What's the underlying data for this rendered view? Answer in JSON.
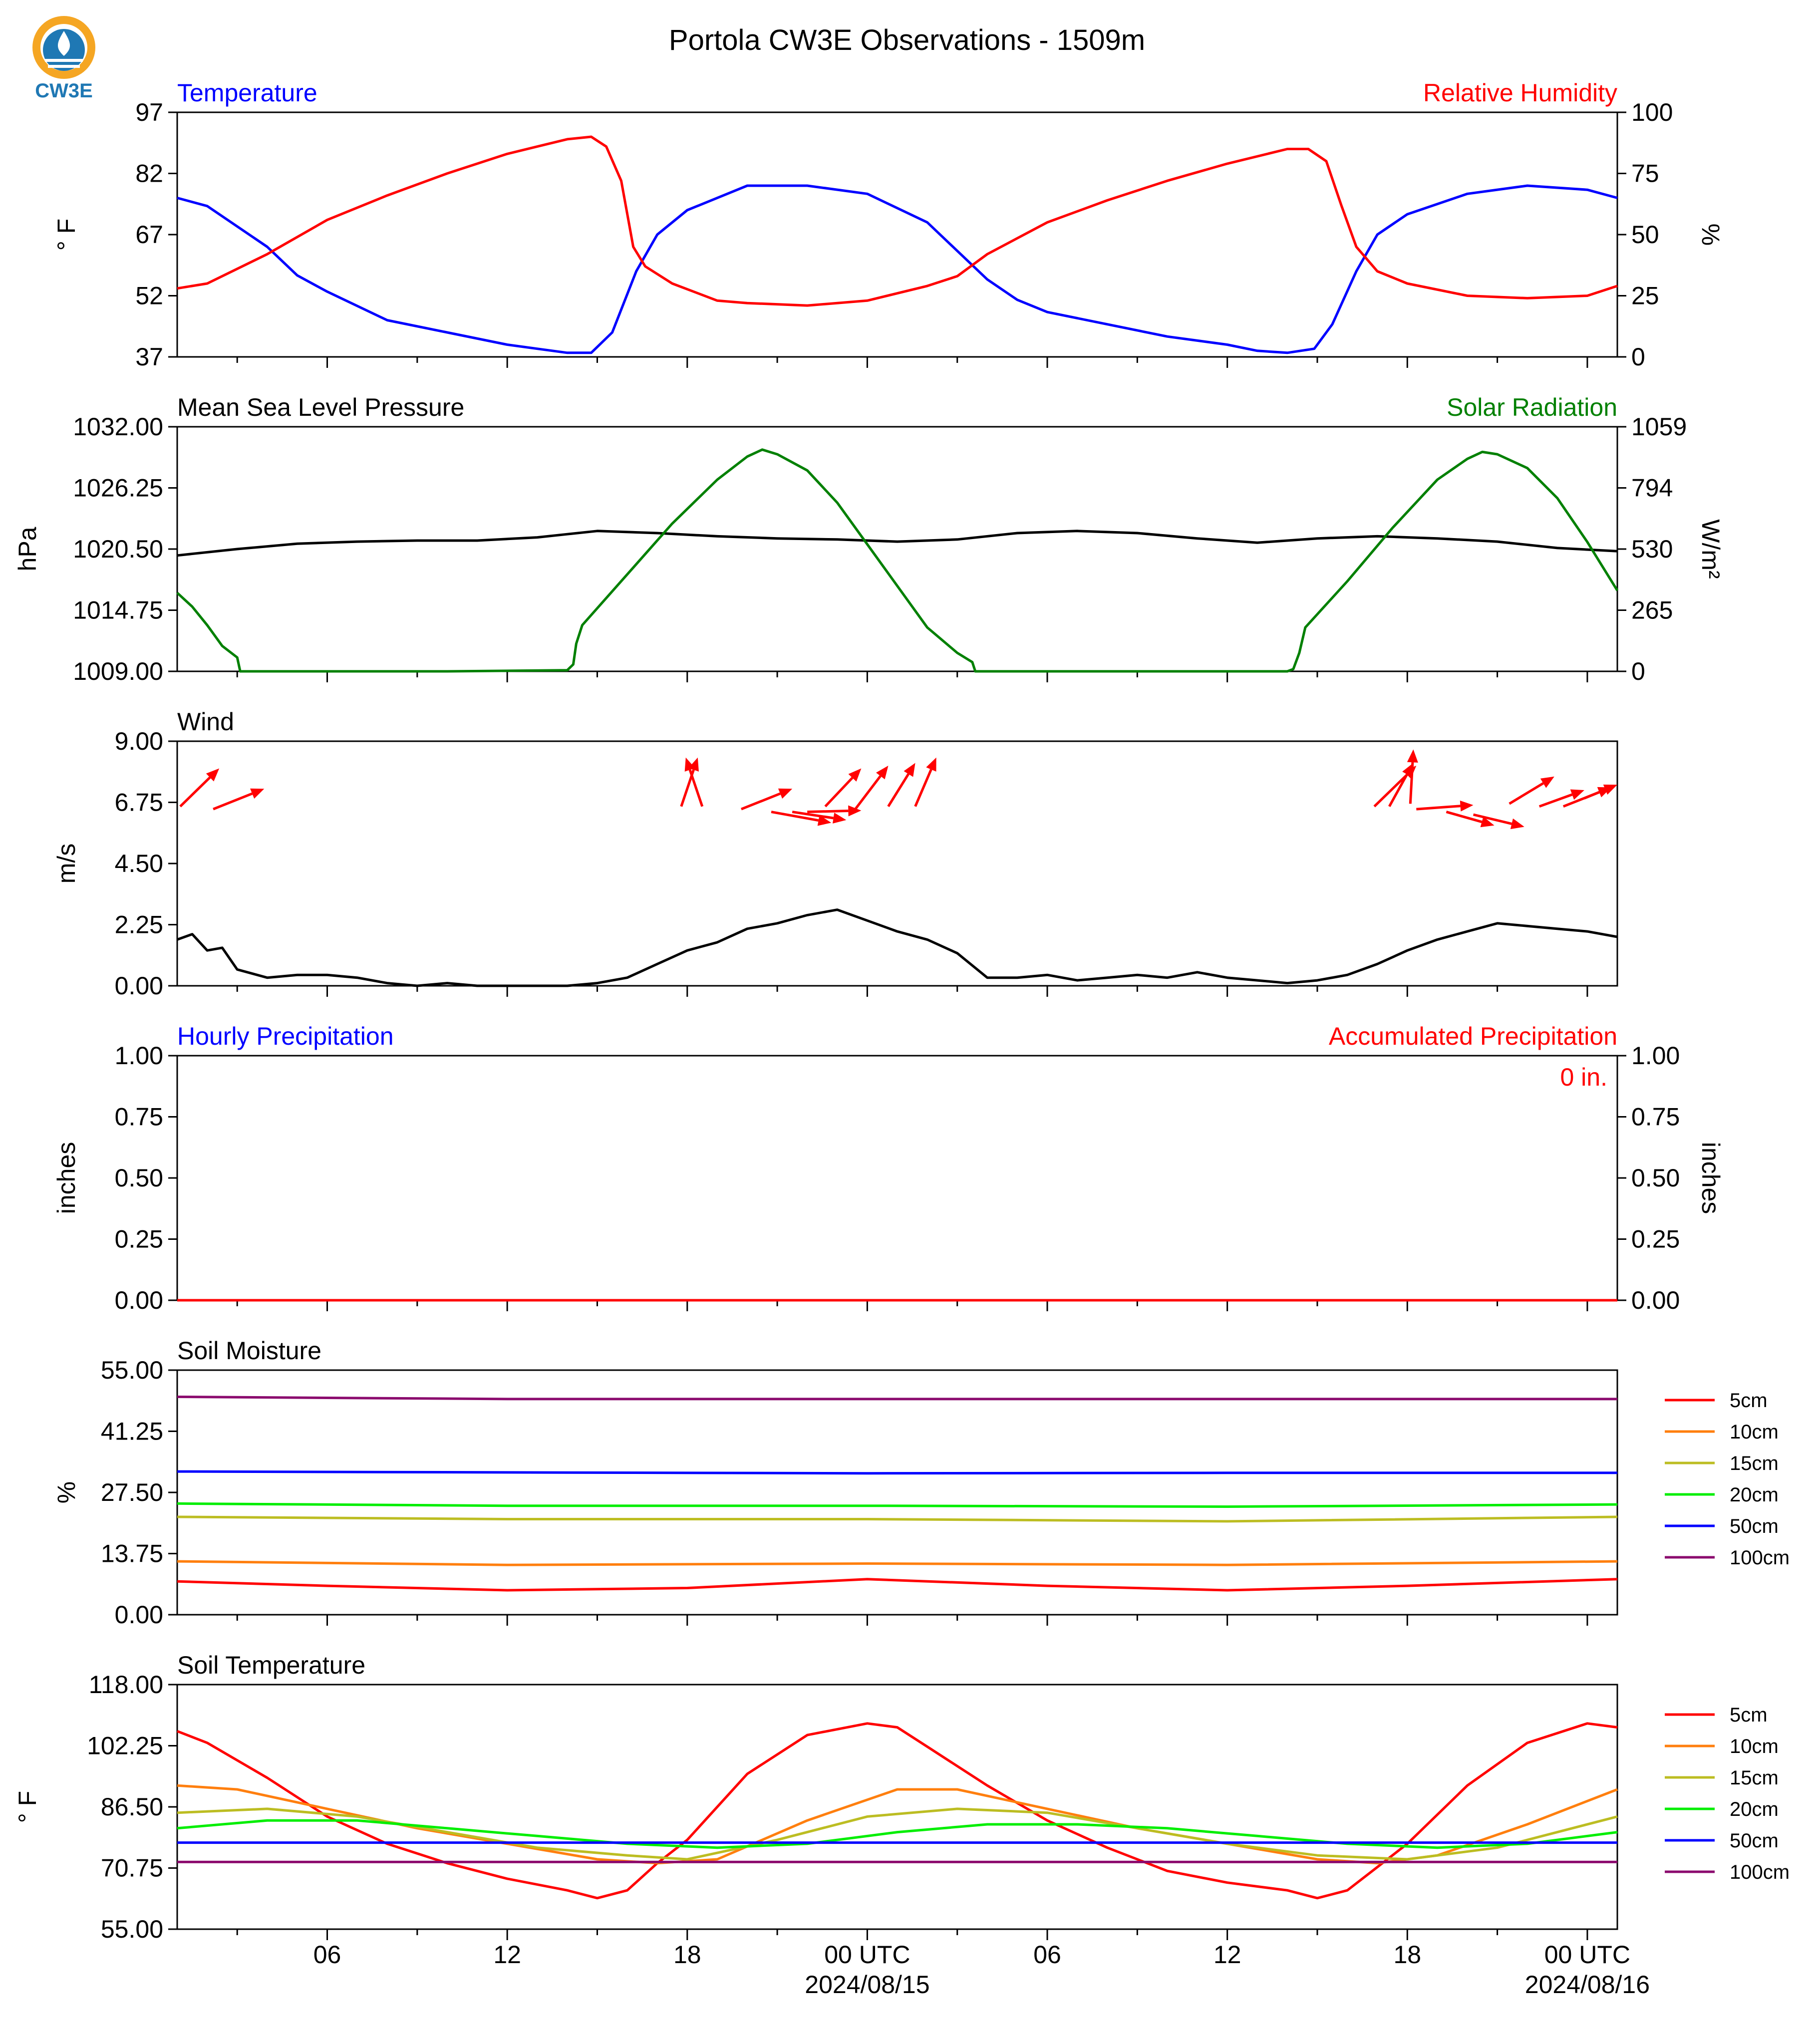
{
  "figure": {
    "title": "Portola CW3E Observations - 1509m",
    "logo_text": "CW3E",
    "colors": {
      "blue": "#0000ff",
      "red": "#ff0000",
      "green": "#008000",
      "black": "#000000",
      "logo": "#1f78b4",
      "logo_orange": "#f5a623"
    },
    "x_axis": {
      "tick_hours": [
        6,
        12,
        18,
        24,
        30,
        36,
        42,
        48
      ],
      "tick_labels": [
        "06",
        "12",
        "18",
        "00 UTC",
        "06",
        "12",
        "18",
        "00 UTC"
      ],
      "date_labels": [
        {
          "hour": 24,
          "text": "2024/08/15"
        },
        {
          "hour": 48,
          "text": "2024/08/16"
        }
      ],
      "xlim_hours": [
        1,
        49
      ]
    }
  },
  "chart_data": [
    {
      "id": "temperature_rh",
      "type": "line",
      "left_title": "Temperature",
      "right_title": "Relative Humidity",
      "ylabel_left": "° F",
      "ylabel_right": "%",
      "ylim_left": [
        37,
        97
      ],
      "ylim_right": [
        0,
        100
      ],
      "yticks_left": [
        "97",
        "82",
        "67",
        "52",
        "37"
      ],
      "yticks_right": [
        "100",
        "75",
        "50",
        "25",
        "0"
      ],
      "series": [
        {
          "name": "Temperature",
          "color": "#0000ff",
          "axis": "left",
          "x": [
            1,
            2,
            4,
            5,
            6,
            8,
            10,
            12,
            13,
            14,
            14.8,
            15.5,
            16.3,
            17,
            18,
            20,
            22,
            24,
            26,
            28,
            29,
            30,
            32,
            34,
            36,
            37,
            38,
            38.9,
            39.5,
            40.3,
            41,
            42,
            44,
            46,
            48,
            49
          ],
          "y": [
            76,
            74,
            64,
            57,
            53,
            46,
            43,
            40,
            39,
            38,
            38,
            43,
            58,
            67,
            73,
            79,
            79,
            77,
            70,
            56,
            51,
            48,
            45,
            42,
            40,
            38.5,
            38,
            39,
            45,
            58,
            67,
            72,
            77,
            79,
            78,
            76
          ]
        },
        {
          "name": "Relative Humidity",
          "color": "#ff0000",
          "axis": "right",
          "x": [
            1,
            2,
            4,
            6,
            8,
            10,
            12,
            13,
            14,
            14.8,
            15.3,
            15.8,
            16.2,
            16.6,
            17.5,
            19,
            20,
            22,
            24,
            26,
            27,
            28,
            30,
            32,
            34,
            36,
            38,
            38.7,
            39.3,
            39.8,
            40.3,
            41,
            42,
            44,
            46,
            48,
            49
          ],
          "y": [
            28,
            30,
            42,
            56,
            66,
            75,
            83,
            86,
            89,
            90,
            86,
            72,
            45,
            37,
            30,
            23,
            22,
            21,
            23,
            29,
            33,
            42,
            55,
            64,
            72,
            79,
            85,
            85,
            80,
            62,
            45,
            35,
            30,
            25,
            24,
            25,
            29
          ]
        }
      ]
    },
    {
      "id": "pressure_solar",
      "type": "line",
      "left_title": "Mean Sea Level Pressure",
      "right_title": "Solar Radiation",
      "ylabel_left": "hPa",
      "ylabel_right": "W/m²",
      "ylim_left": [
        1009,
        1032
      ],
      "ylim_right": [
        0,
        1059
      ],
      "yticks_left": [
        "1032.00",
        "1026.25",
        "1020.50",
        "1014.75",
        "1009.00"
      ],
      "yticks_right": [
        "1059",
        "794",
        "530",
        "265",
        "0"
      ],
      "series": [
        {
          "name": "Mean Sea Level Pressure",
          "color": "#000000",
          "axis": "left",
          "x": [
            1,
            3,
            5,
            7,
            9,
            11,
            13,
            14,
            15,
            17,
            19,
            21,
            23,
            25,
            27,
            29,
            31,
            33,
            35,
            37,
            39,
            41,
            43,
            45,
            47,
            49
          ],
          "y": [
            1019.9,
            1020.5,
            1021.0,
            1021.2,
            1021.3,
            1021.3,
            1021.6,
            1021.9,
            1022.2,
            1022.0,
            1021.7,
            1021.5,
            1021.4,
            1021.2,
            1021.4,
            1022.0,
            1022.2,
            1022.0,
            1021.5,
            1021.1,
            1021.5,
            1021.7,
            1021.5,
            1021.2,
            1020.6,
            1020.3
          ]
        },
        {
          "name": "Solar Radiation",
          "color": "#008000",
          "axis": "right",
          "x": [
            1,
            1.5,
            2,
            2.5,
            3,
            3.1,
            10,
            14,
            14.2,
            14.3,
            14.5,
            16,
            17.5,
            19,
            20,
            20.5,
            21,
            22,
            23,
            24,
            25,
            26,
            27,
            27.5,
            27.6,
            34,
            38,
            38.2,
            38.4,
            38.6,
            40,
            41.5,
            43,
            44,
            44.5,
            45,
            46,
            47,
            48,
            49
          ],
          "y": [
            340,
            280,
            200,
            110,
            60,
            0,
            0,
            5,
            30,
            120,
            200,
            420,
            640,
            830,
            930,
            960,
            940,
            870,
            730,
            550,
            370,
            190,
            80,
            40,
            0,
            0,
            0,
            10,
            80,
            190,
            390,
            620,
            830,
            920,
            950,
            940,
            880,
            750,
            560,
            350
          ]
        }
      ]
    },
    {
      "id": "wind",
      "type": "line",
      "left_title": "Wind",
      "ylabel_left": "m/s",
      "ylim_left": [
        0,
        9
      ],
      "yticks_left": [
        "9.00",
        "6.75",
        "4.50",
        "2.25",
        "0.00"
      ],
      "series": [
        {
          "name": "Wind",
          "color": "#000000",
          "axis": "left",
          "x": [
            1,
            1.5,
            2,
            2.5,
            3,
            4,
            5,
            6,
            7,
            8,
            9,
            10,
            11,
            12,
            13,
            14,
            15,
            16,
            17,
            18,
            19,
            20,
            21,
            22,
            23,
            24,
            25,
            26,
            27,
            28,
            29,
            30,
            31,
            32,
            33,
            34,
            35,
            36,
            37,
            38,
            39,
            40,
            41,
            42,
            43,
            44,
            45,
            46,
            47,
            48,
            49
          ],
          "y": [
            1.7,
            1.9,
            1.3,
            1.4,
            0.6,
            0.3,
            0.4,
            0.4,
            0.3,
            0.1,
            0,
            0.1,
            0,
            0,
            0,
            0,
            0.1,
            0.3,
            0.8,
            1.3,
            1.6,
            2.1,
            2.3,
            2.6,
            2.8,
            2.4,
            2.0,
            1.7,
            1.2,
            0.3,
            0.3,
            0.4,
            0.2,
            0.3,
            0.4,
            0.3,
            0.5,
            0.3,
            0.2,
            0.1,
            0.2,
            0.4,
            0.8,
            1.3,
            1.7,
            2.0,
            2.3,
            2.2,
            2.1,
            2.0,
            1.8
          ]
        }
      ],
      "wind_barbs": [
        {
          "x": 1.1,
          "y": 6.6,
          "dx": 1.3,
          "dy": 1.4
        },
        {
          "x": 2.2,
          "y": 6.5,
          "dx": 1.7,
          "dy": 0.75
        },
        {
          "x": 17.8,
          "y": 6.6,
          "dx": 0.55,
          "dy": 1.8
        },
        {
          "x": 18.5,
          "y": 6.6,
          "dx": -0.55,
          "dy": 1.8
        },
        {
          "x": 19.8,
          "y": 6.5,
          "dx": 1.7,
          "dy": 0.75
        },
        {
          "x": 20.8,
          "y": 6.4,
          "dx": 2.0,
          "dy": -0.4
        },
        {
          "x": 21.5,
          "y": 6.4,
          "dx": 1.8,
          "dy": -0.3
        },
        {
          "x": 22.0,
          "y": 6.4,
          "dx": 1.8,
          "dy": 0.05
        },
        {
          "x": 22.6,
          "y": 6.6,
          "dx": 1.2,
          "dy": 1.4
        },
        {
          "x": 23.6,
          "y": 6.5,
          "dx": 1.1,
          "dy": 1.6
        },
        {
          "x": 24.7,
          "y": 6.6,
          "dx": 0.9,
          "dy": 1.6
        },
        {
          "x": 25.6,
          "y": 6.6,
          "dx": 0.7,
          "dy": 1.8
        },
        {
          "x": 40.9,
          "y": 6.6,
          "dx": 1.4,
          "dy": 1.5
        },
        {
          "x": 41.4,
          "y": 6.6,
          "dx": 0.8,
          "dy": 1.6
        },
        {
          "x": 42.1,
          "y": 6.7,
          "dx": 0.1,
          "dy": 2.0
        },
        {
          "x": 42.3,
          "y": 6.5,
          "dx": 1.9,
          "dy": 0.15
        },
        {
          "x": 43.3,
          "y": 6.4,
          "dx": 1.6,
          "dy": -0.5
        },
        {
          "x": 44.2,
          "y": 6.3,
          "dx": 1.7,
          "dy": -0.45
        },
        {
          "x": 45.4,
          "y": 6.7,
          "dx": 1.5,
          "dy": 1.0
        },
        {
          "x": 46.4,
          "y": 6.6,
          "dx": 1.5,
          "dy": 0.6
        },
        {
          "x": 47.2,
          "y": 6.6,
          "dx": 1.6,
          "dy": 0.7
        },
        {
          "x": 47.9,
          "y": 6.9,
          "dx": 1.1,
          "dy": 0.5
        }
      ]
    },
    {
      "id": "precipitation",
      "type": "line",
      "left_title": "Hourly Precipitation",
      "right_title": "Accumulated Precipitation",
      "annotation": "0 in.",
      "ylabel_left": "inches",
      "ylabel_right": "inches",
      "ylim_left": [
        0,
        1
      ],
      "ylim_right": [
        0,
        1
      ],
      "yticks_left": [
        "1.00",
        "0.75",
        "0.50",
        "0.25",
        "0.00"
      ],
      "yticks_right": [
        "1.00",
        "0.75",
        "0.50",
        "0.25",
        "0.00"
      ],
      "series": [
        {
          "name": "Accumulated Precipitation",
          "color": "#ff0000",
          "axis": "right",
          "x": [
            1,
            49
          ],
          "y": [
            0,
            0
          ]
        }
      ]
    },
    {
      "id": "soil_moisture",
      "type": "line",
      "left_title": "Soil Moisture",
      "ylabel_left": "%",
      "ylim_left": [
        0,
        55
      ],
      "yticks_left": [
        "55.00",
        "41.25",
        "27.50",
        "13.75",
        "0.00"
      ],
      "legend": [
        "5cm",
        "10cm",
        "15cm",
        "20cm",
        "50cm",
        "100cm"
      ],
      "series": [
        {
          "name": "5cm",
          "color": "#ff0000",
          "x": [
            1,
            6,
            12,
            18,
            24,
            30,
            36,
            42,
            49
          ],
          "y": [
            7.5,
            6.5,
            5.5,
            6,
            8,
            6.5,
            5.5,
            6.5,
            8
          ]
        },
        {
          "name": "10cm",
          "color": "#ff7f0e",
          "x": [
            1,
            12,
            24,
            36,
            49
          ],
          "y": [
            12,
            11.2,
            11.5,
            11.2,
            12
          ]
        },
        {
          "name": "15cm",
          "color": "#bcbd22",
          "x": [
            1,
            12,
            24,
            36,
            49
          ],
          "y": [
            22,
            21.5,
            21.5,
            21,
            22
          ]
        },
        {
          "name": "20cm",
          "color": "#00ee00",
          "x": [
            1,
            12,
            24,
            36,
            49
          ],
          "y": [
            25,
            24.5,
            24.5,
            24.3,
            24.8
          ]
        },
        {
          "name": "50cm",
          "color": "#0000ff",
          "x": [
            1,
            12,
            24,
            36,
            49
          ],
          "y": [
            32.2,
            32.0,
            31.8,
            31.9,
            31.9
          ]
        },
        {
          "name": "100cm",
          "color": "#8b0a6e",
          "x": [
            1,
            12,
            24,
            36,
            49
          ],
          "y": [
            49,
            48.5,
            48.5,
            48.5,
            48.5
          ]
        }
      ]
    },
    {
      "id": "soil_temperature",
      "type": "line",
      "left_title": "Soil Temperature",
      "ylabel_left": "° F",
      "ylim_left": [
        55,
        118
      ],
      "yticks_left": [
        "118.00",
        "102.25",
        "86.50",
        "70.75",
        "55.00"
      ],
      "legend": [
        "5cm",
        "10cm",
        "15cm",
        "20cm",
        "50cm",
        "100cm"
      ],
      "series": [
        {
          "name": "5cm",
          "color": "#ff0000",
          "x": [
            1,
            2,
            4,
            6,
            8,
            10,
            12,
            14,
            15,
            16,
            17,
            18,
            20,
            22,
            24,
            25,
            26,
            28,
            30,
            32,
            34,
            36,
            38,
            39,
            40,
            41,
            42,
            44,
            46,
            48,
            49
          ],
          "y": [
            106,
            103,
            94,
            84,
            77,
            72,
            68,
            65,
            63,
            65,
            72,
            78,
            95,
            105,
            108,
            107,
            102,
            92,
            83,
            76,
            70,
            67,
            65,
            63,
            65,
            71,
            77,
            92,
            103,
            108,
            107
          ]
        },
        {
          "name": "10cm",
          "color": "#ff7f0e",
          "x": [
            1,
            3,
            6,
            9,
            12,
            15,
            17,
            19,
            22,
            25,
            27,
            30,
            33,
            36,
            39,
            41,
            43,
            46,
            49
          ],
          "y": [
            92,
            91,
            86,
            81,
            77,
            73,
            72,
            73,
            83,
            91,
            91,
            86,
            81,
            77,
            73,
            72,
            74,
            82,
            91
          ]
        },
        {
          "name": "15cm",
          "color": "#bcbd22",
          "x": [
            1,
            4,
            7,
            10,
            13,
            16,
            18,
            21,
            24,
            27,
            30,
            33,
            36,
            39,
            42,
            45,
            49
          ],
          "y": [
            85,
            86,
            84,
            80,
            76,
            74,
            73,
            78,
            84,
            86,
            85,
            81,
            77,
            74,
            73,
            76,
            84
          ]
        },
        {
          "name": "20cm",
          "color": "#00ee00",
          "x": [
            1,
            4,
            7,
            10,
            13,
            16,
            19,
            22,
            25,
            28,
            31,
            34,
            37,
            40,
            43,
            46,
            49
          ],
          "y": [
            81,
            83,
            83,
            81,
            79,
            77,
            76,
            77,
            80,
            82,
            82,
            81,
            79,
            77,
            76,
            77,
            80
          ]
        },
        {
          "name": "50cm",
          "color": "#0000ff",
          "x": [
            1,
            49
          ],
          "y": [
            77.3,
            77.3
          ]
        },
        {
          "name": "100cm",
          "color": "#8b0a6e",
          "x": [
            1,
            49
          ],
          "y": [
            72.3,
            72.3
          ]
        }
      ]
    }
  ]
}
